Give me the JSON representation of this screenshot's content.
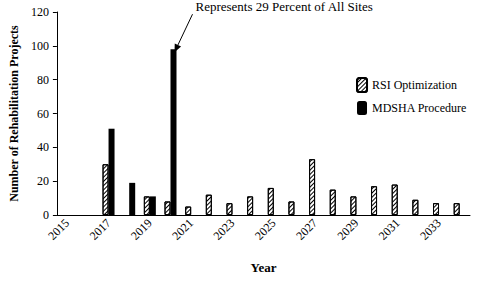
{
  "chart_data": {
    "type": "bar",
    "x_label": "Year",
    "y_label": "Number of Rehabilitation Projects",
    "categories": [
      "2015",
      null,
      "2017",
      null,
      "2019",
      null,
      "2021",
      null,
      "2023",
      null,
      "2025",
      null,
      "2027",
      null,
      "2029",
      null,
      "2031",
      null,
      "2033",
      null
    ],
    "series": [
      {
        "name": "RSI Optimization",
        "color": "#000000",
        "values": [
          null,
          null,
          30,
          null,
          11,
          8,
          5,
          12,
          7,
          11,
          16,
          8,
          33,
          15,
          11,
          17,
          18,
          9,
          7,
          7
        ]
      },
      {
        "name": "MDSHA Procedure",
        "color": "#000000",
        "values": [
          null,
          null,
          51,
          19,
          11,
          98,
          null,
          null,
          null,
          null,
          null,
          null,
          null,
          null,
          null,
          null,
          null,
          null,
          null,
          null
        ]
      }
    ],
    "ylim": [
      0,
      120
    ],
    "yticks": [
      0,
      20,
      40,
      60,
      80,
      100,
      120
    ],
    "grid": false,
    "legend": "right",
    "annotations": [
      {
        "text": "Represents 29 Percent of All Sites",
        "series": "MDSHA Procedure",
        "y": 98
      }
    ]
  }
}
